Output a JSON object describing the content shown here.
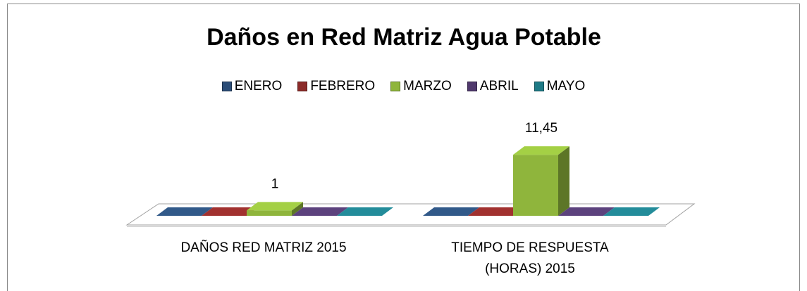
{
  "chart_data": {
    "type": "bar3d",
    "title": "Daños en Red Matriz Agua Potable",
    "categories": [
      "DAÑOS RED MATRIZ 2015",
      "TIEMPO DE RESPUESTA (HORAS) 2015"
    ],
    "series": [
      {
        "name": "ENERO",
        "color": "#2b4d77",
        "values": [
          0,
          0
        ]
      },
      {
        "name": "FEBRERO",
        "color": "#8c2b29",
        "values": [
          0,
          0
        ]
      },
      {
        "name": "MARZO",
        "color": "#8fb53c",
        "values": [
          1,
          11.45
        ],
        "value_labels": [
          "1",
          "11,45"
        ]
      },
      {
        "name": "ABRIL",
        "color": "#50396d",
        "values": [
          0,
          0
        ]
      },
      {
        "name": "MAYO",
        "color": "#1e7a86",
        "values": [
          0,
          0
        ]
      }
    ],
    "ylim": [
      0,
      12
    ]
  }
}
